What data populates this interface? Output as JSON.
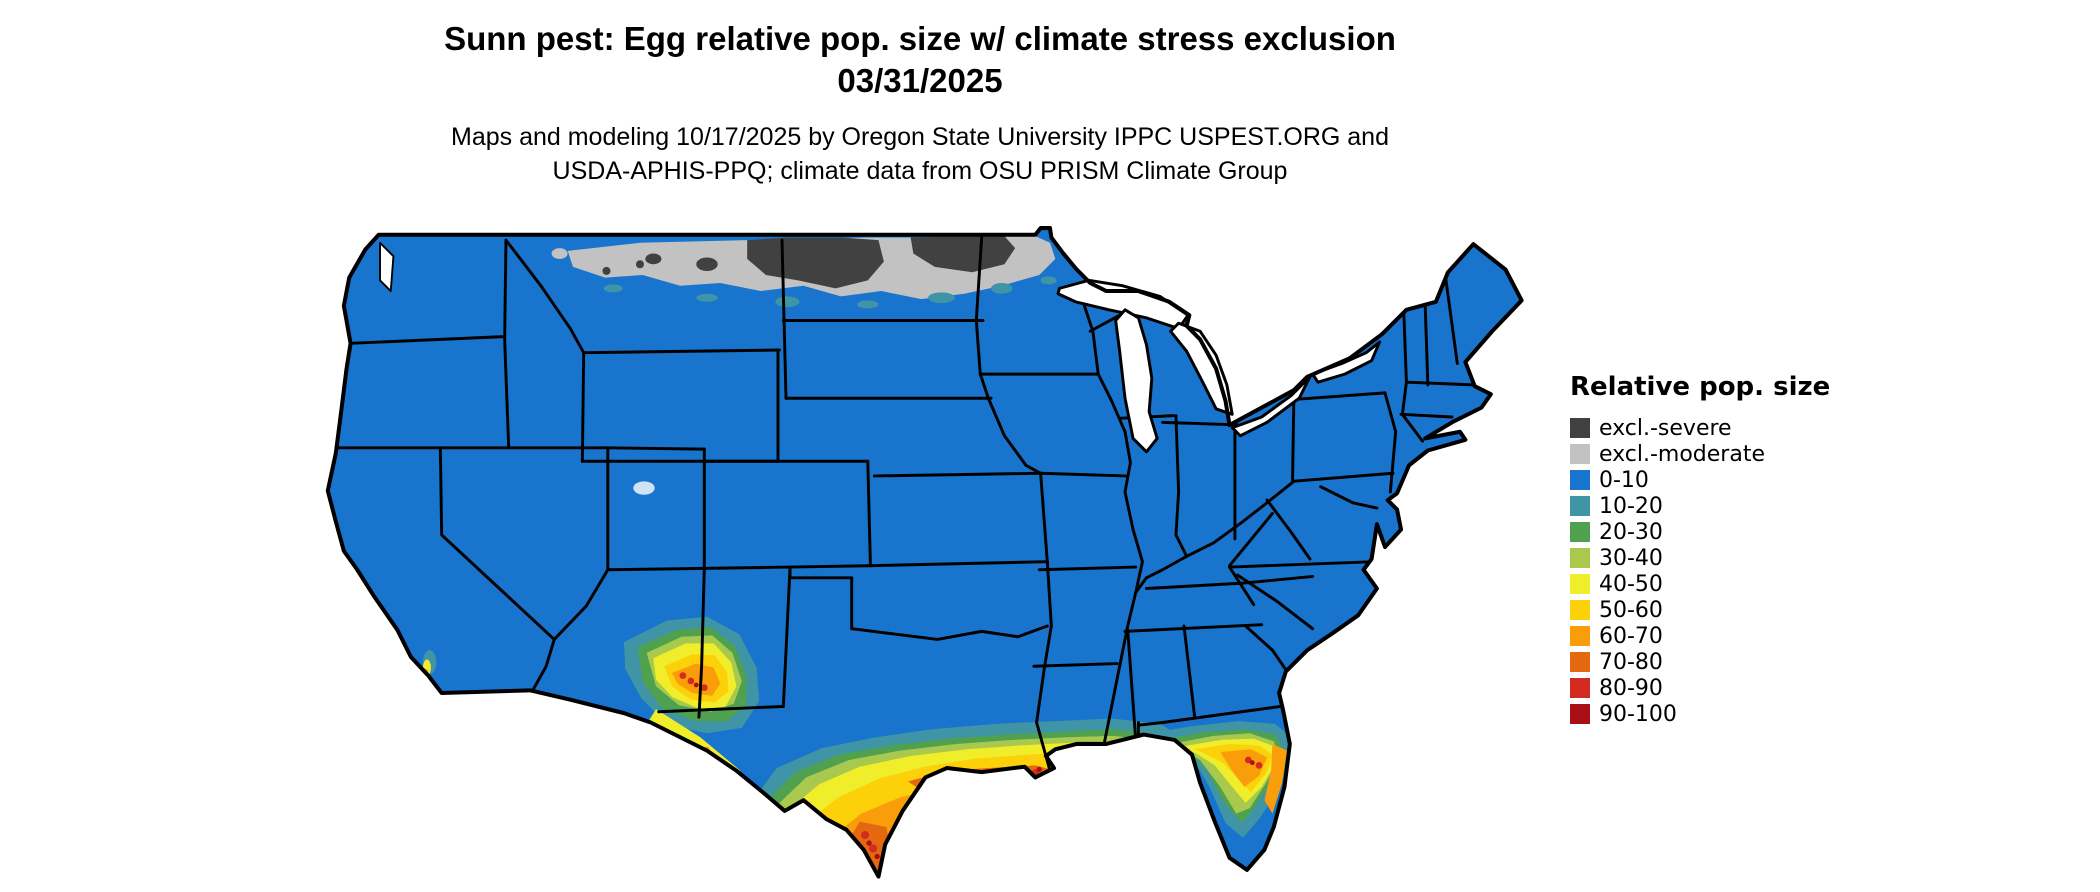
{
  "title": {
    "line1": "Sunn pest: Egg relative pop. size w/ climate stress exclusion",
    "line2": "03/31/2025"
  },
  "subtitle": {
    "line1": "Maps and modeling 10/17/2025 by Oregon State University IPPC USPEST.ORG and",
    "line2": "USDA-APHIS-PPQ; climate data from OSU PRISM Climate Group"
  },
  "map": {
    "region": "Continental United States",
    "border_color": "#000000",
    "water_color": "#ffffff"
  },
  "legend": {
    "title": "Relative pop. size",
    "entries": [
      {
        "label": "excl.-severe",
        "color": "#414141"
      },
      {
        "label": "excl.-moderate",
        "color": "#c2c2c2"
      },
      {
        "label": "0-10",
        "color": "#1874cd"
      },
      {
        "label": "10-20",
        "color": "#3f95a5"
      },
      {
        "label": "20-30",
        "color": "#4fa14f"
      },
      {
        "label": "30-40",
        "color": "#a9c94e"
      },
      {
        "label": "40-50",
        "color": "#f0ee2a"
      },
      {
        "label": "50-60",
        "color": "#fdd109"
      },
      {
        "label": "60-70",
        "color": "#f99d0b"
      },
      {
        "label": "70-80",
        "color": "#e4680f"
      },
      {
        "label": "80-90",
        "color": "#d32b20"
      },
      {
        "label": "90-100",
        "color": "#a91016"
      }
    ]
  }
}
